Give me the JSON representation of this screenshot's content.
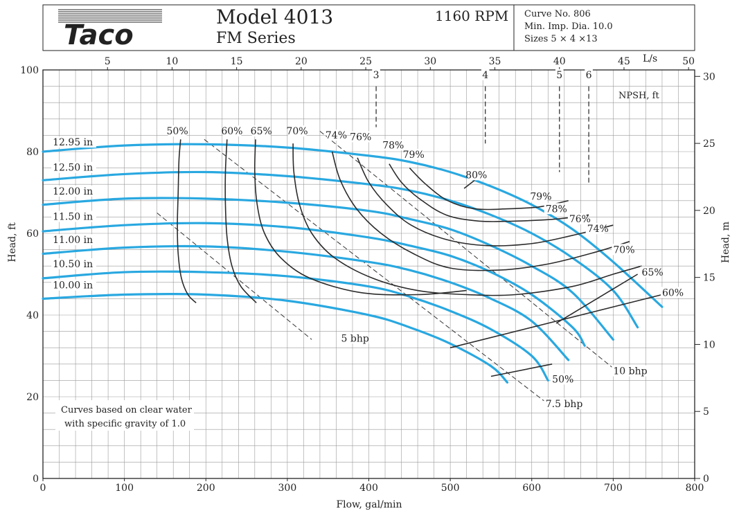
{
  "header": {
    "brand": "Taco",
    "model": "Model 4013",
    "series": "FM Series",
    "rpm": "1160 RPM",
    "curve_no": "Curve No. 806",
    "min_imp_dia": "Min. Imp. Dia. 10.0",
    "sizes": "Sizes 5 × 4 ×13"
  },
  "note": [
    "Curves based on clear water",
    "with specific gravity of 1.0"
  ],
  "colors": {
    "impeller": "#29a8e0",
    "efficiency": "#2b2b2b",
    "grid": "#999999",
    "dashed": "#333333"
  },
  "chart_data": {
    "type": "line",
    "title": "Model 4013 FM Series 1160 RPM",
    "xlabel": "Flow, gal/min",
    "ylabel": "Head, ft",
    "xlim": [
      0,
      800
    ],
    "ylim": [
      0,
      100
    ],
    "x_ticks": [
      0,
      100,
      200,
      300,
      400,
      500,
      600,
      700,
      800
    ],
    "y_ticks": [
      0,
      20,
      40,
      60,
      80,
      100
    ],
    "top_axis": {
      "label": "L/s",
      "ticks": [
        5,
        10,
        15,
        20,
        25,
        30,
        35,
        40,
        45,
        50
      ]
    },
    "right_axis": {
      "label": "Head, m",
      "ticks": [
        0,
        5,
        10,
        15,
        20,
        25,
        30
      ]
    },
    "series": [
      {
        "name": "12.95 in",
        "kind": "impeller",
        "label_x": 12,
        "label_y": 81.5,
        "x": [
          0,
          100,
          200,
          300,
          400,
          450,
          500,
          550,
          600,
          650,
          700,
          760
        ],
        "y": [
          80,
          81.5,
          81.8,
          81,
          79,
          77.5,
          75,
          71.5,
          67,
          61,
          53,
          42
        ]
      },
      {
        "name": "12.50 in",
        "kind": "impeller",
        "label_x": 12,
        "label_y": 75.3,
        "x": [
          0,
          100,
          200,
          300,
          400,
          450,
          500,
          550,
          600,
          650,
          700,
          730
        ],
        "y": [
          73,
          74.5,
          75,
          74,
          72,
          70.5,
          68,
          64.5,
          60,
          54,
          46,
          37
        ]
      },
      {
        "name": "12.00 in",
        "kind": "impeller",
        "label_x": 12,
        "label_y": 69.5,
        "x": [
          0,
          100,
          200,
          300,
          400,
          450,
          500,
          550,
          600,
          650,
          700
        ],
        "y": [
          67,
          68.5,
          68.5,
          67.5,
          65.5,
          63.5,
          61,
          57,
          52,
          45.5,
          34
        ]
      },
      {
        "name": "11.50 in",
        "kind": "impeller",
        "label_x": 12,
        "label_y": 63.3,
        "x": [
          0,
          100,
          200,
          300,
          400,
          450,
          500,
          550,
          600,
          650,
          665
        ],
        "y": [
          60.5,
          62,
          62.5,
          61.5,
          59,
          57,
          54.5,
          50.5,
          45,
          37,
          32.5
        ]
      },
      {
        "name": "11.00 in",
        "kind": "impeller",
        "label_x": 12,
        "label_y": 57.6,
        "x": [
          0,
          100,
          200,
          300,
          400,
          450,
          500,
          550,
          600,
          645
        ],
        "y": [
          55,
          56.5,
          56.8,
          55.5,
          53,
          51,
          48,
          44,
          38.5,
          29
        ]
      },
      {
        "name": "10.50 in",
        "kind": "impeller",
        "label_x": 12,
        "label_y": 51.7,
        "x": [
          0,
          100,
          200,
          300,
          400,
          450,
          500,
          550,
          600,
          620
        ],
        "y": [
          49,
          50.5,
          50.5,
          49.5,
          47,
          44.5,
          41,
          36.5,
          30,
          24
        ]
      },
      {
        "name": "10.00 in",
        "kind": "impeller",
        "label_x": 12,
        "label_y": 46.5,
        "x": [
          0,
          100,
          200,
          300,
          400,
          450,
          500,
          550,
          570
        ],
        "y": [
          44,
          45,
          45,
          43.5,
          40,
          37,
          33,
          27.5,
          23.5
        ]
      },
      {
        "name": "50%",
        "kind": "efficiency",
        "label_x": 165,
        "label_y": 84.2,
        "x": [
          169,
          167,
          166,
          165,
          166,
          170,
          178,
          188
        ],
        "y": [
          83,
          78,
          70,
          62,
          55,
          49,
          45,
          43
        ]
      },
      {
        "name": "60%",
        "kind": "efficiency",
        "label_x": 232,
        "label_y": 84.2,
        "x": [
          226,
          224,
          224,
          226,
          232,
          243,
          262
        ],
        "y": [
          83,
          75,
          67,
          59,
          52,
          47,
          43
        ]
      },
      {
        "name": "65%",
        "kind": "efficiency",
        "label_x": 268,
        "label_y": 84.2,
        "x": [
          261,
          260,
          263,
          272,
          292,
          328,
          390,
          460,
          520
        ],
        "y": [
          83,
          75,
          67,
          60,
          54,
          49,
          45.5,
          45,
          46
        ]
      },
      {
        "name": "70%",
        "kind": "efficiency",
        "label_x": 312,
        "label_y": 84.2,
        "x": [
          307,
          308,
          315,
          330,
          358,
          405,
          460,
          520,
          580,
          650,
          700,
          735
        ],
        "y": [
          82,
          75,
          67,
          60,
          54,
          49,
          46,
          45,
          45,
          47,
          50,
          52
        ]
      },
      {
        "name": "74%",
        "kind": "efficiency",
        "label_x": 360,
        "label_y": 83.2,
        "x": [
          355,
          365,
          385,
          415,
          455,
          500,
          560,
          620,
          680,
          720
        ],
        "y": [
          80,
          73,
          66,
          60,
          55,
          51.5,
          51,
          52.5,
          55.5,
          58
        ]
      },
      {
        "name": "76%",
        "kind": "efficiency",
        "label_x": 390,
        "label_y": 82.8,
        "x": [
          386,
          400,
          422,
          452,
          495,
          545,
          600,
          650,
          700
        ],
        "y": [
          78.5,
          72.5,
          67,
          62,
          58.5,
          57,
          57.5,
          59.5,
          62
        ]
      },
      {
        "name": "78%",
        "kind": "efficiency",
        "label_x": 430,
        "label_y": 80.8,
        "x": [
          425,
          440,
          462,
          495,
          535,
          580,
          630,
          670
        ],
        "y": [
          77,
          72.5,
          68.5,
          64.5,
          63,
          63,
          63.5,
          64.5
        ]
      },
      {
        "name": "79%",
        "kind": "efficiency",
        "label_x": 455,
        "label_y": 78.5,
        "x": [
          450,
          470,
          497,
          530,
          570,
          610,
          645
        ],
        "y": [
          76,
          72,
          68,
          66,
          66,
          66.5,
          68
        ]
      },
      {
        "name": "80%",
        "kind": "efficiency",
        "label_x": 532,
        "label_y": 73.5,
        "x": [
          517,
          530
        ],
        "y": [
          71,
          73
        ]
      },
      {
        "name": "5 bhp",
        "kind": "bhp",
        "label_x": 366,
        "label_y": 33.5,
        "x": [
          140,
          330
        ],
        "y": [
          65,
          34
        ]
      },
      {
        "name": "7.5 bhp",
        "kind": "bhp",
        "label_x": 617,
        "label_y": 17.5,
        "x": [
          198,
          615
        ],
        "y": [
          83,
          19
        ]
      },
      {
        "name": "10 bhp",
        "kind": "bhp",
        "label_x": 700,
        "label_y": 25.5,
        "x": [
          340,
          700
        ],
        "y": [
          85,
          27
        ]
      },
      {
        "name": "3",
        "kind": "npsh",
        "label_x": 409,
        "label_y": 98,
        "x": [
          409,
          409
        ],
        "y": [
          96,
          86
        ]
      },
      {
        "name": "4",
        "kind": "npsh",
        "label_x": 543,
        "label_y": 98,
        "x": [
          543,
          543
        ],
        "y": [
          96,
          82
        ]
      },
      {
        "name": "5",
        "kind": "npsh",
        "label_x": 634,
        "label_y": 98,
        "x": [
          634,
          634
        ],
        "y": [
          96,
          75
        ]
      },
      {
        "name": "6",
        "kind": "npsh",
        "label_x": 670,
        "label_y": 98,
        "x": [
          670,
          670
        ],
        "y": [
          96,
          72
        ]
      }
    ],
    "lower_efficiency_lines": [
      {
        "name": "50%",
        "x": [
          550,
          625
        ],
        "y": [
          25,
          28
        ],
        "label_x": 625,
        "label_y": 23.5
      },
      {
        "name": "60%",
        "x": [
          500,
          760
        ],
        "y": [
          32,
          45
        ]
      },
      {
        "name": "65%",
        "x": [
          630,
          730
        ],
        "y": [
          38,
          50
        ]
      }
    ],
    "right_labels": [
      {
        "name": "79%",
        "label_x": 598,
        "label_y": 68.2
      },
      {
        "name": "78%",
        "label_x": 617,
        "label_y": 65.2
      },
      {
        "name": "76%",
        "label_x": 646,
        "label_y": 62.7
      },
      {
        "name": "74%",
        "label_x": 668,
        "label_y": 60.3
      },
      {
        "name": "70%",
        "label_x": 700,
        "label_y": 55.2
      },
      {
        "name": "65%",
        "label_x": 735,
        "label_y": 49.7
      },
      {
        "name": "60%",
        "label_x": 760,
        "label_y": 44.7
      }
    ],
    "npsh_label": "NPSH, ft"
  }
}
